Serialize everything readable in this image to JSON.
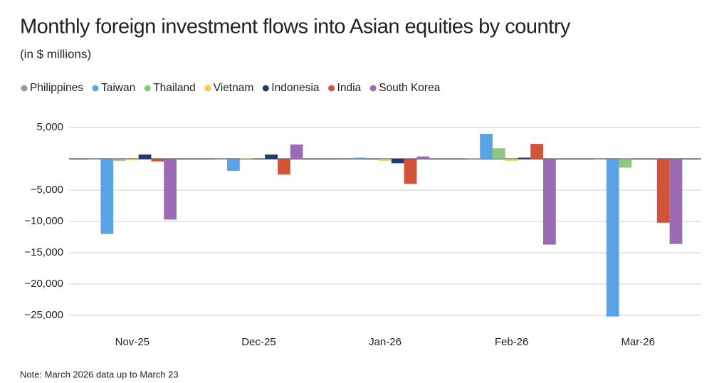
{
  "chart_data": {
    "type": "bar",
    "title": "Monthly foreign investment flows into Asian equities by country",
    "subtitle": "(in $ millions)",
    "note": "Note: March 2026 data up to March 23",
    "categories": [
      "Nov-25",
      "Dec-25",
      "Jan-26",
      "Feb-26",
      "Mar-26"
    ],
    "series": [
      {
        "name": "Philippines",
        "color": "#9a9a9a",
        "values": [
          -100,
          -100,
          150,
          100,
          -100
        ]
      },
      {
        "name": "Taiwan",
        "color": "#5ba3e6",
        "values": [
          -12000,
          -1900,
          200,
          4000,
          -25200
        ]
      },
      {
        "name": "Thailand",
        "color": "#8ec77f",
        "values": [
          -300,
          100,
          0,
          1700,
          -1400
        ]
      },
      {
        "name": "Vietnam",
        "color": "#f2cf3a",
        "values": [
          -200,
          0,
          -300,
          -300,
          0
        ]
      },
      {
        "name": "Indonesia",
        "color": "#1f3a6e",
        "values": [
          700,
          700,
          -700,
          200,
          0
        ]
      },
      {
        "name": "India",
        "color": "#d2533a",
        "values": [
          -400,
          -2500,
          -4000,
          2400,
          -10200
        ]
      },
      {
        "name": "South Korea",
        "color": "#9b6bb5",
        "values": [
          -9700,
          2300,
          400,
          -13700,
          -13600
        ]
      }
    ],
    "ylim": [
      -27000,
      7000
    ],
    "yticks": [
      {
        "value": 5000,
        "label": "5,000"
      },
      {
        "value": -5000,
        "label": "−5,000"
      },
      {
        "value": -10000,
        "label": "−10,000"
      },
      {
        "value": -15000,
        "label": "−15,000"
      },
      {
        "value": -20000,
        "label": "−20,000"
      },
      {
        "value": -25000,
        "label": "−25,000"
      }
    ],
    "grid": true
  }
}
